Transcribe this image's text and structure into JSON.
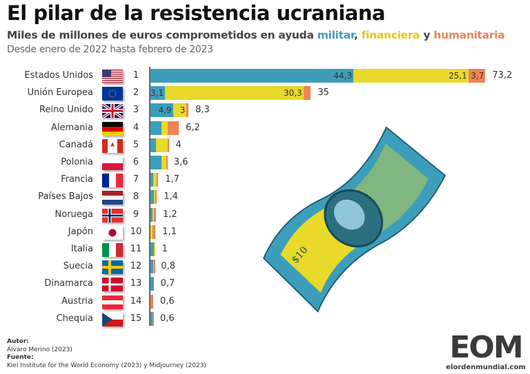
{
  "header": {
    "title": "El pilar de la resistencia ucraniana",
    "subtitle_prefix": "Miles de millones de euros comprometidos en ayuda ",
    "subtitle_military": "militar",
    "subtitle_comma": ", ",
    "subtitle_financial": "financiera",
    "subtitle_and": " y ",
    "subtitle_humanitarian": "humanitaria",
    "description": "Desde enero de 2022 hasta febrero de 2023"
  },
  "colors": {
    "militar": "#3d9ebb",
    "financiera": "#e8d92a",
    "humanitaria": "#ef8354"
  },
  "chart_data": {
    "type": "bar",
    "orientation": "horizontal",
    "stacked": true,
    "title": "El pilar de la resistencia ucraniana",
    "series_names": [
      "militar",
      "financiera",
      "humanitaria"
    ],
    "rows": [
      {
        "rank": "1",
        "country": "Estados Unidos",
        "flag": "us",
        "values": [
          44.3,
          25.1,
          3.7
        ],
        "total": "73,2"
      },
      {
        "rank": "2",
        "country": "Unión Europea",
        "flag": "eu",
        "values": [
          3.1,
          30.3,
          1.6
        ],
        "total": "35"
      },
      {
        "rank": "3",
        "country": "Reino Unido",
        "flag": "uk",
        "values": [
          4.9,
          3,
          0.4
        ],
        "total": "8,3"
      },
      {
        "rank": "4",
        "country": "Alemania",
        "flag": "de",
        "values": [
          2.4,
          1.4,
          2.4
        ],
        "total": "6,2"
      },
      {
        "rank": "5",
        "country": "Canadá",
        "flag": "ca",
        "values": [
          1.2,
          2.6,
          0.2
        ],
        "total": "4"
      },
      {
        "rank": "6",
        "country": "Polonia",
        "flag": "pl",
        "values": [
          2.4,
          1.0,
          0.2
        ],
        "total": "3,6"
      },
      {
        "rank": "7",
        "country": "Francia",
        "flag": "fr",
        "values": [
          0.6,
          0.8,
          0.3
        ],
        "total": "1,7"
      },
      {
        "rank": "8",
        "country": "Países Bajos",
        "flag": "nl",
        "values": [
          0.8,
          0.3,
          0.3
        ],
        "total": "1,4"
      },
      {
        "rank": "9",
        "country": "Noruega",
        "flag": "no",
        "values": [
          0.5,
          0.3,
          0.4
        ],
        "total": "1,2"
      },
      {
        "rank": "10",
        "country": "Japón",
        "flag": "jp",
        "values": [
          0,
          0.5,
          0.6
        ],
        "total": "1,1"
      },
      {
        "rank": "11",
        "country": "Italia",
        "flag": "it",
        "values": [
          0.7,
          0.3,
          0
        ],
        "total": "1"
      },
      {
        "rank": "12",
        "country": "Suecia",
        "flag": "se",
        "values": [
          0.6,
          0.1,
          0.1
        ],
        "total": "0,8"
      },
      {
        "rank": "13",
        "country": "Dinamarca",
        "flag": "dk",
        "values": [
          0.7,
          0,
          0
        ],
        "total": "0,7"
      },
      {
        "rank": "14",
        "country": "Austria",
        "flag": "at",
        "values": [
          0,
          0,
          0.6
        ],
        "total": "0,6"
      },
      {
        "rank": "15",
        "country": "Chequia",
        "flag": "cz",
        "values": [
          0.5,
          0,
          0.1
        ],
        "total": "0,6"
      }
    ],
    "xlim": [
      0,
      73.2
    ]
  },
  "footer": {
    "author_label": "Autor:",
    "author": "Álvaro Merino (2023)",
    "source_label": "Fuente:",
    "source": "Kiel Institute for the World Economy (2023) y Midjourney (2023)"
  },
  "logo": {
    "text": "EOM",
    "url_text": "elordenmundial.com"
  },
  "illustration": {
    "note_text": "$10"
  }
}
